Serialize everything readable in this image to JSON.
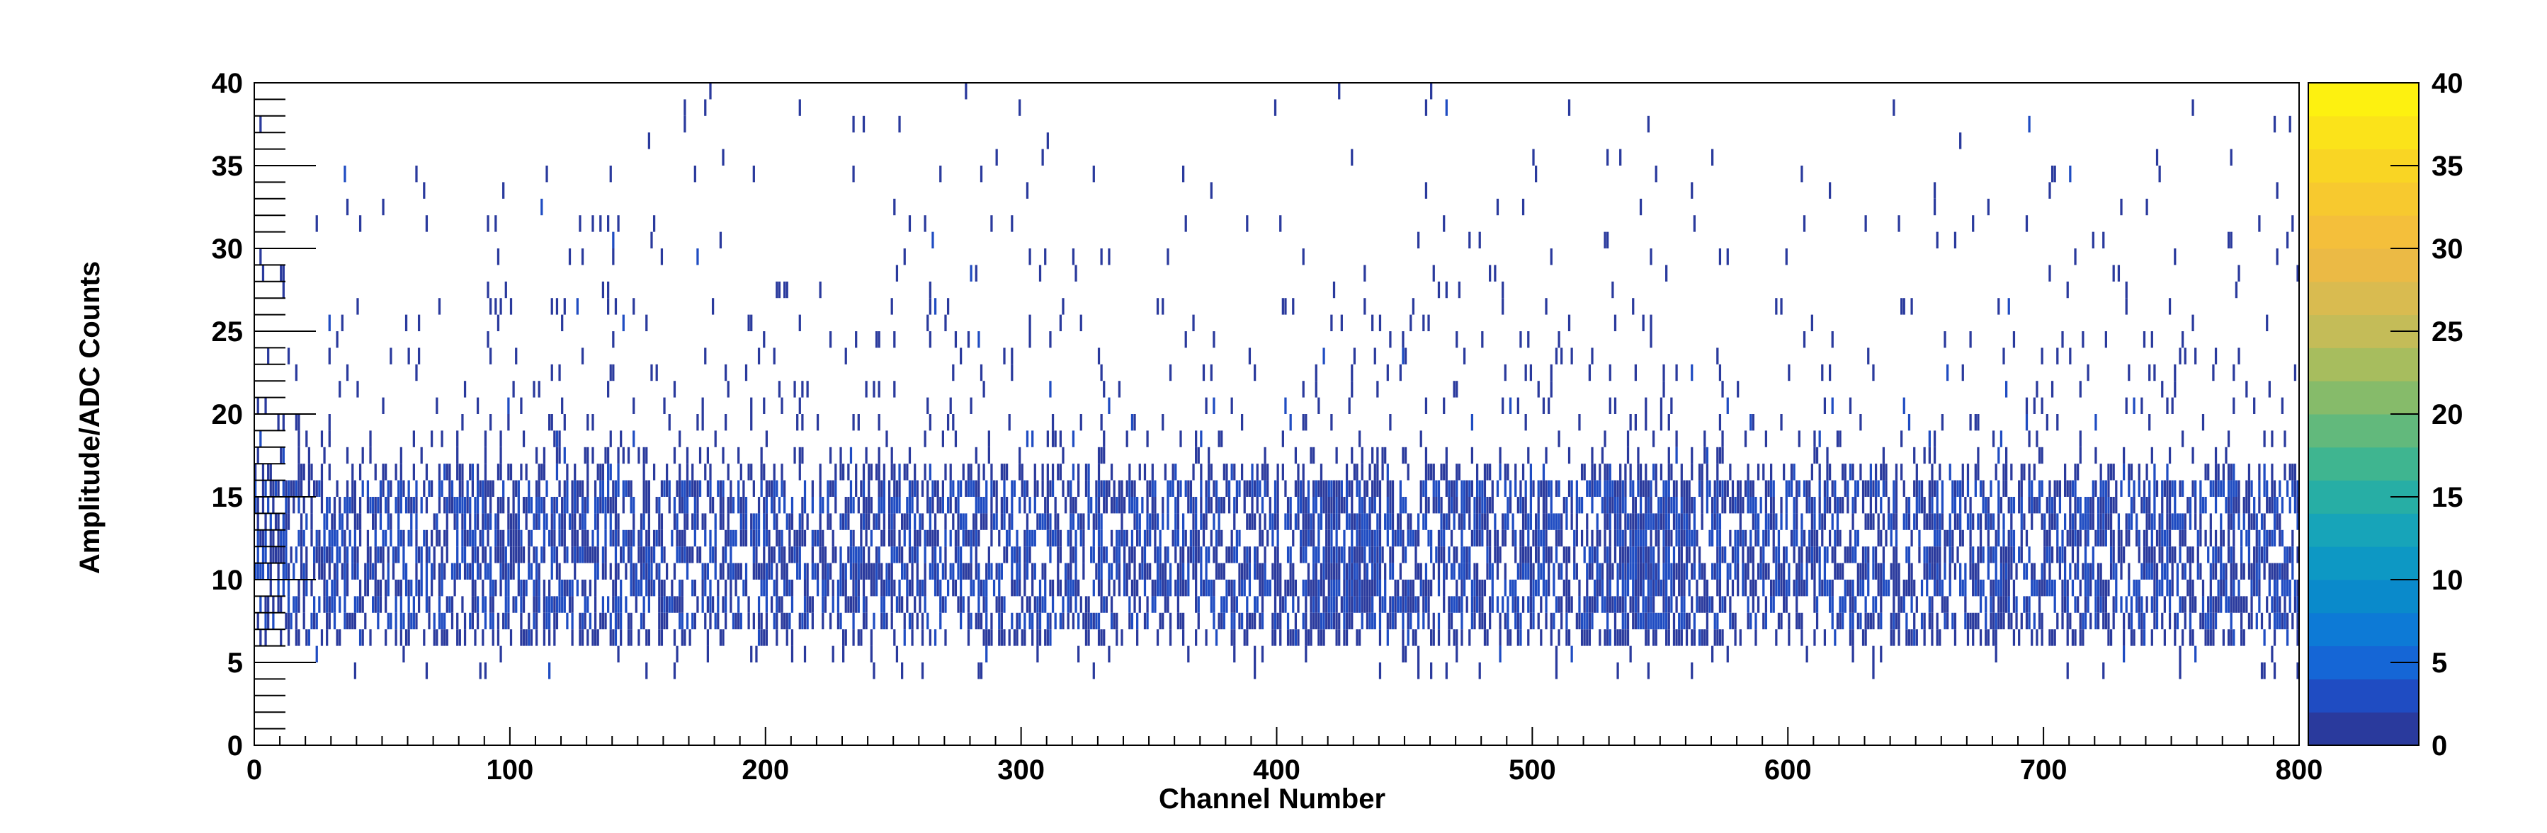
{
  "chart_data": {
    "type": "heatmap",
    "title": "",
    "xlabel": "Channel Number",
    "ylabel": "Amplitude/ADC Counts",
    "xlim": [
      0,
      800
    ],
    "ylim": [
      0,
      40
    ],
    "x_ticks": [
      "0",
      "100",
      "200",
      "300",
      "400",
      "500",
      "600",
      "700",
      "800"
    ],
    "y_ticks": [
      "0",
      "5",
      "10",
      "15",
      "20",
      "25",
      "30",
      "35",
      "40"
    ],
    "colorbar": {
      "range": [
        0,
        40
      ],
      "ticks": [
        "0",
        "5",
        "10",
        "15",
        "20",
        "25",
        "30",
        "35",
        "40"
      ],
      "palette": [
        "#2a3a9d",
        "#1f4cc2",
        "#1566d6",
        "#0d7ad6",
        "#0a8acb",
        "#0d98c4",
        "#17a4b9",
        "#27aea5",
        "#3fb590",
        "#62b97c",
        "#86bb6a",
        "#a7bd5e",
        "#c4bc58",
        "#d9bb50",
        "#ebba45",
        "#f4bf3b",
        "#f7c92f",
        "#f9d524",
        "#fbe31a",
        "#fdf110"
      ]
    },
    "bin_width_x": 1,
    "bin_height_y": 1,
    "band": {
      "typical_amplitude_range": [
        6,
        16
      ],
      "typical_content": [
        1,
        3
      ],
      "tail_max_amplitude": 40,
      "regions": [
        {
          "channel_range": [
            0,
            400
          ],
          "note": "dense band between 6 and 16 ADC counts with sparse tail up to 40"
        },
        {
          "channel_range": [
            410,
            440
          ],
          "note": "denser cluster between 8 and 17 ADC counts"
        },
        {
          "channel_range": [
            530,
            560
          ],
          "note": "denser cluster between 8 and 18 ADC counts"
        },
        {
          "channel_range": [
            400,
            800
          ],
          "note": "band between 7 and 16 ADC counts with sparse tail up to 40"
        }
      ]
    },
    "grid": false,
    "legend": "none"
  }
}
